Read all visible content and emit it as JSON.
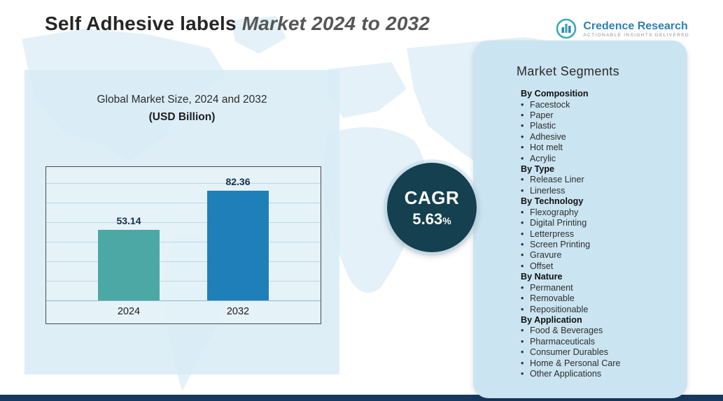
{
  "title": {
    "prefix": "Self Adhesive labels ",
    "suffix": "Market 2024 to 2032"
  },
  "logo": {
    "name": "Credence Research",
    "tagline": "Actionable Insights Delivered"
  },
  "chart_panel": {
    "title": "Global Market Size, 2024 and 2032",
    "subtitle": "(USD Billion)"
  },
  "cagr": {
    "label": "CAGR",
    "value": "5.63",
    "percent_sign": "%"
  },
  "segments": {
    "heading": "Market Segments",
    "groups": [
      {
        "label": "By Composition",
        "items": [
          "Facestock",
          "Paper",
          "Plastic",
          "Adhesive",
          "Hot melt",
          "Acrylic"
        ]
      },
      {
        "label": "By Type",
        "items": [
          "Release Liner",
          "Linerless"
        ]
      },
      {
        "label": "By Technology",
        "items": [
          "Flexography",
          "Digital Printing",
          "Letterpress",
          "Screen Printing",
          "Gravure",
          "Offset"
        ]
      },
      {
        "label": "By Nature",
        "items": [
          "Permanent",
          "Removable",
          "Repositionable"
        ]
      },
      {
        "label": "By Application",
        "items": [
          "Food & Beverages",
          "Pharmaceuticals",
          "Consumer Durables",
          "Home & Personal Care",
          "Other Applications"
        ]
      }
    ]
  },
  "chart_data": {
    "type": "bar",
    "title": "Global Market Size, 2024 and 2032",
    "subtitle": "(USD Billion)",
    "categories": [
      "2024",
      "2032"
    ],
    "values": [
      53.14,
      82.36
    ],
    "ylim": [
      0,
      100
    ],
    "grid": true,
    "bar_colors": [
      "#4BA8A5",
      "#1F80B9"
    ],
    "value_labels": [
      "53.14",
      "82.36"
    ]
  },
  "colors": {
    "cagr_bg": "#14404f",
    "left_panel_bg": "#d8ecf5",
    "right_panel_bg": "#cbe4f1",
    "bottom_strip": "#17395e",
    "logo_blue": "#2e7fb5",
    "title_gray": "#565656"
  }
}
